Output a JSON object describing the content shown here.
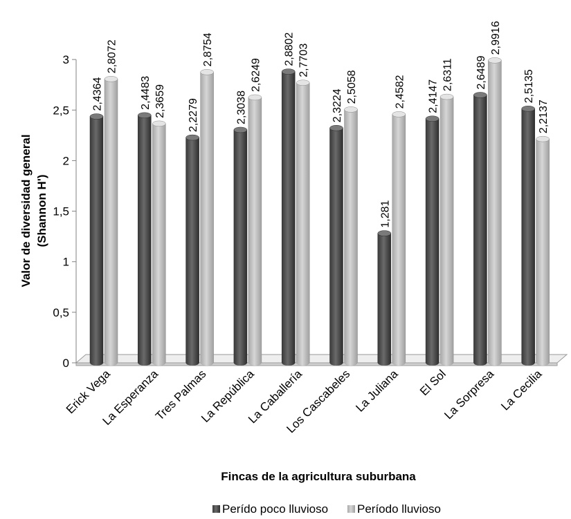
{
  "chart_data": {
    "type": "bar",
    "title": "",
    "xlabel": "Fincas de la agricultura suburbana",
    "ylabel_lines": [
      "Valor de diversidad general",
      "(Shannon H')"
    ],
    "ylim": [
      0,
      3
    ],
    "yticks": [
      "0",
      "0,5",
      "1",
      "1,5",
      "2",
      "2,5",
      "3"
    ],
    "categories": [
      "Erick Vega",
      "La Esperanza",
      "Tres Palmas",
      "La República",
      "La Caballería",
      "Los Cascabeles",
      "La Juliana",
      "El Sol",
      "La Sorpresa",
      "La Cecilia"
    ],
    "series": [
      {
        "name": "Perído poco lluvioso",
        "color": "#595959",
        "values": [
          2.4364,
          2.4483,
          2.2279,
          2.3038,
          2.8802,
          2.3224,
          1.281,
          2.4147,
          2.6489,
          2.5135
        ],
        "labels": [
          "2,4364",
          "2,4483",
          "2,2279",
          "2,3038",
          "2,8802",
          "2,3224",
          "1,281",
          "2,4147",
          "2,6489",
          "2,5135"
        ]
      },
      {
        "name": "Período lluvioso",
        "color": "#bfbfbf",
        "values": [
          2.8072,
          2.3659,
          2.8754,
          2.6249,
          2.7703,
          2.5058,
          2.4582,
          2.6311,
          2.9916,
          2.2137
        ],
        "labels": [
          "2,8072",
          "2,3659",
          "2,8754",
          "2,6249",
          "2,7703",
          "2,5058",
          "2,4582",
          "2,6311",
          "2,9916",
          "2,2137"
        ]
      }
    ],
    "legend": "bottom",
    "grid": false
  }
}
